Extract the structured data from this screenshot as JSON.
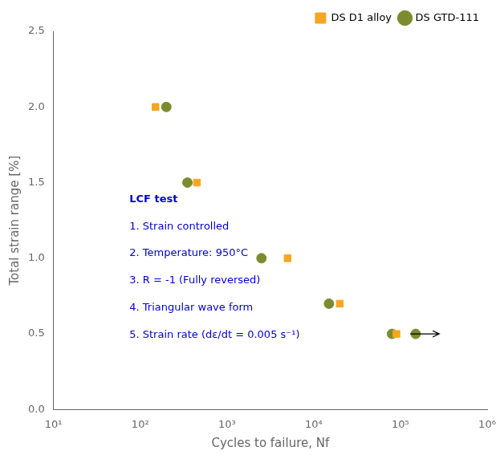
{
  "chart_data": {
    "type": "scatter",
    "xlabel": "Cycles to failure, Nf",
    "ylabel": "Total strain range [%]",
    "log": "x",
    "xlim": [
      10,
      1000000
    ],
    "ylim": [
      0.0,
      2.5
    ],
    "xticks": [
      {
        "value": 10,
        "label": "10¹"
      },
      {
        "value": 100,
        "label": "10²"
      },
      {
        "value": 1000,
        "label": "10³"
      },
      {
        "value": 10000,
        "label": "10⁴"
      },
      {
        "value": 100000,
        "label": "10⁵"
      },
      {
        "value": 1000000,
        "label": "10⁶"
      }
    ],
    "yticks": [
      {
        "value": 0,
        "label": "0.0"
      },
      0.5,
      {
        "value": 1,
        "label": "1.0"
      },
      1.5,
      {
        "value": 2,
        "label": "2.0"
      },
      2.5
    ],
    "grid": false,
    "legend": "upper right",
    "series": [
      {
        "name": "DS D1 alloy",
        "color": "#f5a623",
        "marker": "square",
        "x": [
          150,
          450,
          5000,
          20000,
          90000
        ],
        "values": [
          2.0,
          1.5,
          1.0,
          0.7,
          0.5
        ]
      },
      {
        "name": "DS GTD-111",
        "color": "#7a8c2e",
        "marker": "circle",
        "x": [
          200,
          350,
          2500,
          15000,
          80000,
          150000
        ],
        "values": [
          2.0,
          1.5,
          1.0,
          0.7,
          0.5,
          0.5
        ]
      }
    ],
    "arrow": {
      "from": [
        130000,
        0.5
      ],
      "to": [
        280000,
        0.5
      ]
    },
    "annotations": [
      {
        "title": "LCF test",
        "lines": [
          "1. Strain controlled",
          "2. Temperature: 950°C",
          "3. R = -1 (Fully reversed)",
          "4. Triangular wave form",
          "5. Strain rate (dε/dt = 0.005 s⁻¹)"
        ],
        "color": "#0000cc"
      }
    ]
  }
}
